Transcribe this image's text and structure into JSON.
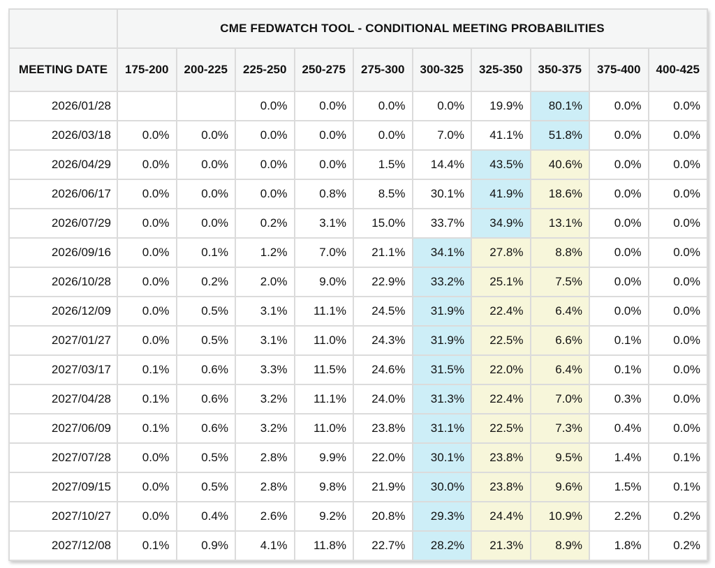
{
  "title": "CME FEDWATCH TOOL - CONDITIONAL MEETING PROBABILITIES",
  "columns": {
    "meeting_date_label": "MEETING DATE",
    "rate_ranges": [
      "175-200",
      "200-225",
      "225-250",
      "250-275",
      "275-300",
      "300-325",
      "325-350",
      "350-375",
      "375-400",
      "400-425"
    ]
  },
  "colors": {
    "highlight_blue": "#cdeef7",
    "highlight_yellow": "#f7f6da",
    "header_bg": "#f5f6f6",
    "cell_border": "#dbdbdb",
    "text": "#111111"
  },
  "rows": [
    {
      "date": "2026/01/28",
      "values": [
        "",
        "",
        "0.0%",
        "0.0%",
        "0.0%",
        "0.0%",
        "19.9%",
        "80.1%",
        "0.0%",
        "0.0%"
      ],
      "highlights": [
        "",
        "",
        "",
        "",
        "",
        "",
        "",
        "blue",
        "",
        ""
      ]
    },
    {
      "date": "2026/03/18",
      "values": [
        "0.0%",
        "0.0%",
        "0.0%",
        "0.0%",
        "0.0%",
        "7.0%",
        "41.1%",
        "51.8%",
        "0.0%",
        "0.0%"
      ],
      "highlights": [
        "",
        "",
        "",
        "",
        "",
        "",
        "",
        "blue",
        "",
        ""
      ]
    },
    {
      "date": "2026/04/29",
      "values": [
        "0.0%",
        "0.0%",
        "0.0%",
        "0.0%",
        "1.5%",
        "14.4%",
        "43.5%",
        "40.6%",
        "0.0%",
        "0.0%"
      ],
      "highlights": [
        "",
        "",
        "",
        "",
        "",
        "",
        "blue",
        "yellow",
        "",
        ""
      ]
    },
    {
      "date": "2026/06/17",
      "values": [
        "0.0%",
        "0.0%",
        "0.0%",
        "0.8%",
        "8.5%",
        "30.1%",
        "41.9%",
        "18.6%",
        "0.0%",
        "0.0%"
      ],
      "highlights": [
        "",
        "",
        "",
        "",
        "",
        "",
        "blue",
        "yellow",
        "",
        ""
      ]
    },
    {
      "date": "2026/07/29",
      "values": [
        "0.0%",
        "0.0%",
        "0.2%",
        "3.1%",
        "15.0%",
        "33.7%",
        "34.9%",
        "13.1%",
        "0.0%",
        "0.0%"
      ],
      "highlights": [
        "",
        "",
        "",
        "",
        "",
        "",
        "blue",
        "yellow",
        "",
        ""
      ]
    },
    {
      "date": "2026/09/16",
      "values": [
        "0.0%",
        "0.1%",
        "1.2%",
        "7.0%",
        "21.1%",
        "34.1%",
        "27.8%",
        "8.8%",
        "0.0%",
        "0.0%"
      ],
      "highlights": [
        "",
        "",
        "",
        "",
        "",
        "blue",
        "yellow",
        "yellow",
        "",
        ""
      ]
    },
    {
      "date": "2026/10/28",
      "values": [
        "0.0%",
        "0.2%",
        "2.0%",
        "9.0%",
        "22.9%",
        "33.2%",
        "25.1%",
        "7.5%",
        "0.0%",
        "0.0%"
      ],
      "highlights": [
        "",
        "",
        "",
        "",
        "",
        "blue",
        "yellow",
        "yellow",
        "",
        ""
      ]
    },
    {
      "date": "2026/12/09",
      "values": [
        "0.0%",
        "0.5%",
        "3.1%",
        "11.1%",
        "24.5%",
        "31.9%",
        "22.4%",
        "6.4%",
        "0.0%",
        "0.0%"
      ],
      "highlights": [
        "",
        "",
        "",
        "",
        "",
        "blue",
        "yellow",
        "yellow",
        "",
        ""
      ]
    },
    {
      "date": "2027/01/27",
      "values": [
        "0.0%",
        "0.5%",
        "3.1%",
        "11.0%",
        "24.3%",
        "31.9%",
        "22.5%",
        "6.6%",
        "0.1%",
        "0.0%"
      ],
      "highlights": [
        "",
        "",
        "",
        "",
        "",
        "blue",
        "yellow",
        "yellow",
        "",
        ""
      ]
    },
    {
      "date": "2027/03/17",
      "values": [
        "0.1%",
        "0.6%",
        "3.3%",
        "11.5%",
        "24.6%",
        "31.5%",
        "22.0%",
        "6.4%",
        "0.1%",
        "0.0%"
      ],
      "highlights": [
        "",
        "",
        "",
        "",
        "",
        "blue",
        "yellow",
        "yellow",
        "",
        ""
      ]
    },
    {
      "date": "2027/04/28",
      "values": [
        "0.1%",
        "0.6%",
        "3.2%",
        "11.1%",
        "24.0%",
        "31.3%",
        "22.4%",
        "7.0%",
        "0.3%",
        "0.0%"
      ],
      "highlights": [
        "",
        "",
        "",
        "",
        "",
        "blue",
        "yellow",
        "yellow",
        "",
        ""
      ]
    },
    {
      "date": "2027/06/09",
      "values": [
        "0.1%",
        "0.6%",
        "3.2%",
        "11.0%",
        "23.8%",
        "31.1%",
        "22.5%",
        "7.3%",
        "0.4%",
        "0.0%"
      ],
      "highlights": [
        "",
        "",
        "",
        "",
        "",
        "blue",
        "yellow",
        "yellow",
        "",
        ""
      ]
    },
    {
      "date": "2027/07/28",
      "values": [
        "0.0%",
        "0.5%",
        "2.8%",
        "9.9%",
        "22.0%",
        "30.1%",
        "23.8%",
        "9.5%",
        "1.4%",
        "0.1%"
      ],
      "highlights": [
        "",
        "",
        "",
        "",
        "",
        "blue",
        "yellow",
        "yellow",
        "",
        ""
      ]
    },
    {
      "date": "2027/09/15",
      "values": [
        "0.0%",
        "0.5%",
        "2.8%",
        "9.8%",
        "21.9%",
        "30.0%",
        "23.8%",
        "9.6%",
        "1.5%",
        "0.1%"
      ],
      "highlights": [
        "",
        "",
        "",
        "",
        "",
        "blue",
        "yellow",
        "yellow",
        "",
        ""
      ]
    },
    {
      "date": "2027/10/27",
      "values": [
        "0.0%",
        "0.4%",
        "2.6%",
        "9.2%",
        "20.8%",
        "29.3%",
        "24.4%",
        "10.9%",
        "2.2%",
        "0.2%"
      ],
      "highlights": [
        "",
        "",
        "",
        "",
        "",
        "blue",
        "yellow",
        "yellow",
        "",
        ""
      ]
    },
    {
      "date": "2027/12/08",
      "values": [
        "0.1%",
        "0.9%",
        "4.1%",
        "11.8%",
        "22.7%",
        "28.2%",
        "21.3%",
        "8.9%",
        "1.8%",
        "0.2%"
      ],
      "highlights": [
        "",
        "",
        "",
        "",
        "",
        "blue",
        "yellow",
        "yellow",
        "",
        ""
      ]
    }
  ]
}
